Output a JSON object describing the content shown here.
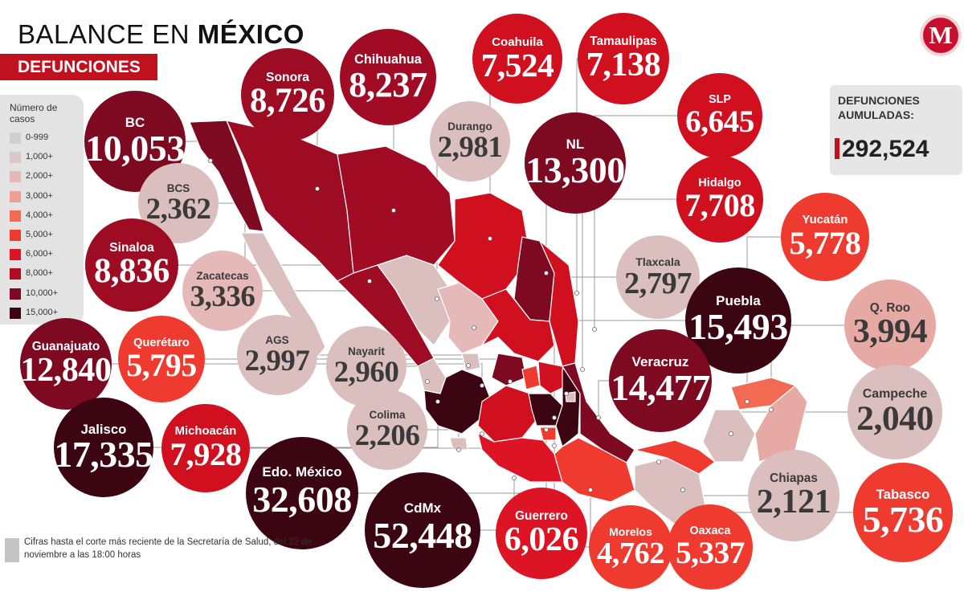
{
  "header": {
    "title_light": "BALANCE EN",
    "title_bold": "MÉXICO",
    "subtitle": "DEFUNCIONES",
    "logo": "M"
  },
  "legend": {
    "title": "Número de casos",
    "items": [
      {
        "label": "0-999",
        "color": "#cfcfcf"
      },
      {
        "label": "1,000+",
        "color": "#dcc6c7"
      },
      {
        "label": "2,000+",
        "color": "#e6b9b9"
      },
      {
        "label": "3,000+",
        "color": "#ee9f95"
      },
      {
        "label": "4,000+",
        "color": "#f26a52"
      },
      {
        "label": "5,000+",
        "color": "#ef3b2f"
      },
      {
        "label": "6,000+",
        "color": "#dd1424"
      },
      {
        "label": "8,000+",
        "color": "#b20c22"
      },
      {
        "label": "10,000+",
        "color": "#7d0a20"
      },
      {
        "label": "15,000+",
        "color": "#3b0611"
      }
    ]
  },
  "total": {
    "label": "DEFUNCIONES AUMULADAS:",
    "value": "292,524"
  },
  "footnote": "Cifras hasta el corte más reciente de la Secretaría de Salud, del 22 de noviembre a las 18:00 horas",
  "chart_data": {
    "type": "table",
    "title": "BALANCE EN MÉXICO",
    "subtitle": "DEFUNCIONES",
    "categories": [
      "BC",
      "Sonora",
      "Chihuahua",
      "Coahuila",
      "Tamaulipas",
      "SLP",
      "Durango",
      "BCS",
      "NL",
      "Hidalgo",
      "Yucatán",
      "Sinaloa",
      "Zacatecas",
      "Tlaxcala",
      "Puebla",
      "Q. Roo",
      "Guanajuato",
      "Querétaro",
      "AGS",
      "Nayarit",
      "Veracruz",
      "Campeche",
      "Jalisco",
      "Michoacán",
      "Colima",
      "Edo. México",
      "CdMx",
      "Guerrero",
      "Morelos",
      "Oaxaca",
      "Chiapas",
      "Tabasco"
    ],
    "series": [
      {
        "values": [
          10053,
          8726,
          8237,
          7524,
          7138,
          6645,
          2981,
          2362,
          13300,
          7708,
          5778,
          8836,
          3336,
          2797,
          15493,
          3994,
          12840,
          5795,
          2997,
          2960,
          14477,
          2040,
          17335,
          7928,
          2206,
          32608,
          52448,
          6026,
          4762,
          5337,
          2121,
          5736
        ],
        "labels": [
          "10,053",
          "8,726",
          "8,237",
          "7,524",
          "7,138",
          "6,645",
          "2,981",
          "2,362",
          "13,300",
          "7,708",
          "5,778",
          "8,836",
          "3,336",
          "2,797",
          "15,493",
          "3,994",
          "12,840",
          "5,795",
          "2,997",
          "2,960",
          "14,477",
          "2,040",
          "17,335",
          "7,928",
          "2,206",
          "32,608",
          "52,448",
          "6,026",
          "4,762",
          "5,337",
          "2,121",
          "5,736"
        ],
        "colors": [
          "#7d0a20",
          "#9e0c24",
          "#a10c24",
          "#d0101f",
          "#d0101f",
          "#d0101f",
          "#dbbebe",
          "#dbbebe",
          "#7d0a20",
          "#d0101f",
          "#ef3b2f",
          "#9e0c24",
          "#e6b9b9",
          "#dbbebe",
          "#3b0611",
          "#e6a9a4",
          "#7d0a20",
          "#ef3b2f",
          "#dbbebe",
          "#dbbebe",
          "#7d0a20",
          "#dbbebe",
          "#3b0611",
          "#d0101f",
          "#dbbebe",
          "#3b0611",
          "#3b0611",
          "#dd1424",
          "#ef3b2f",
          "#ef3b2f",
          "#dbbebe",
          "#ef3b2f"
        ]
      }
    ]
  }
}
